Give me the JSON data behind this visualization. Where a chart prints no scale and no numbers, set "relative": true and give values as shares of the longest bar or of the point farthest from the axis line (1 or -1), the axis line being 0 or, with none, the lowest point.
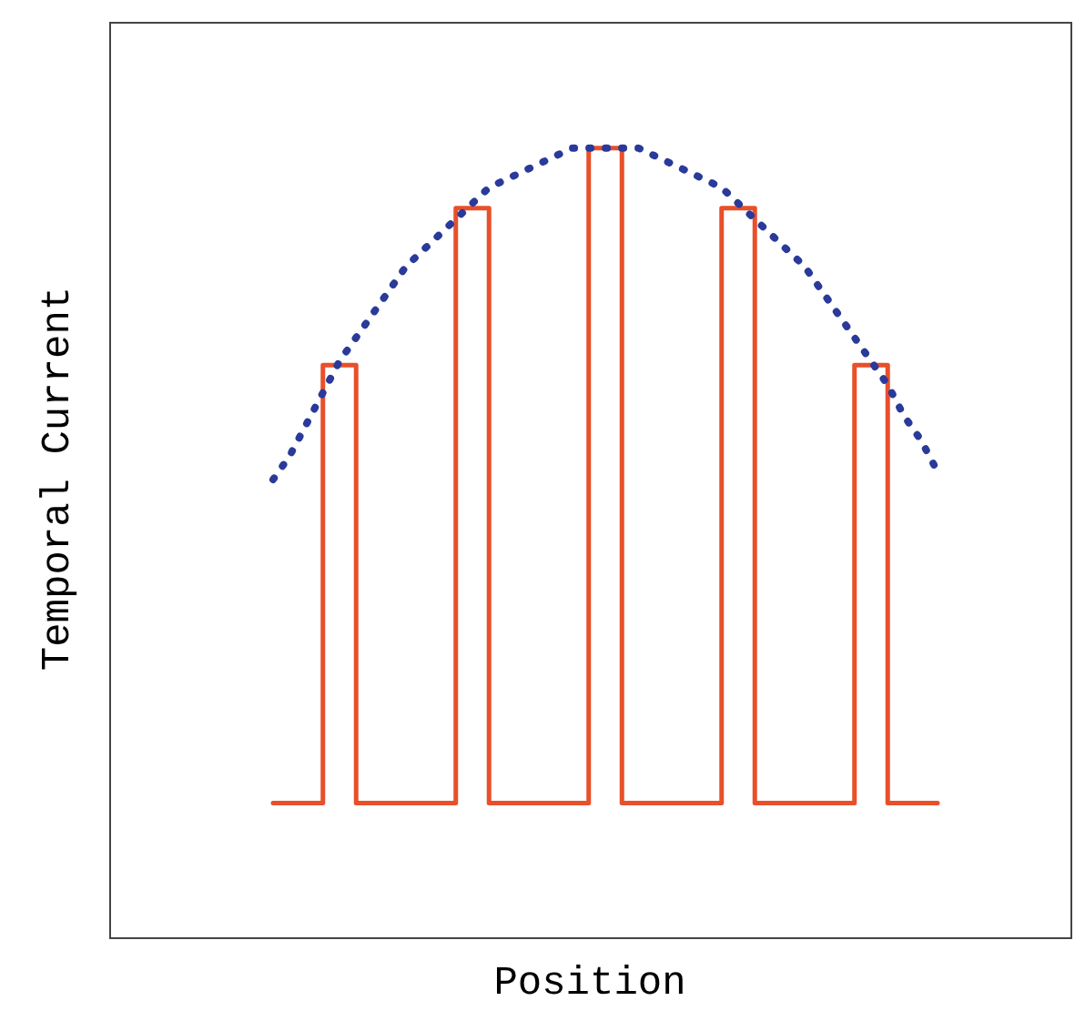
{
  "chart_data": {
    "type": "line",
    "relative": true,
    "xlabel": "Position",
    "ylabel": "Temporal Current",
    "marker": "none",
    "tick_labels": false,
    "categories": [
      null,
      null,
      null,
      null,
      null,
      null,
      null,
      null,
      null,
      null,
      null,
      null,
      null,
      null,
      null,
      null,
      null,
      null,
      null,
      null,
      null,
      null,
      null,
      null,
      null,
      null,
      null,
      null,
      null,
      null,
      null,
      null,
      null,
      null,
      null,
      null,
      null,
      null,
      null,
      null,
      null
    ],
    "series": [
      {
        "type": "step",
        "color": "#e8502a",
        "line_style": "solid",
        "values": [
          0.17,
          0.17,
          0.17,
          0.725,
          0.725,
          0.17,
          0.17,
          0.17,
          0.17,
          0.17,
          0.17,
          0.924,
          0.924,
          0.17,
          0.17,
          0.17,
          0.17,
          0.17,
          0.17,
          1,
          1,
          0.17,
          0.17,
          0.17,
          0.17,
          0.17,
          0.17,
          0.924,
          0.924,
          0.17,
          0.17,
          0.17,
          0.17,
          0.17,
          0.17,
          0.725,
          0.725,
          0.17,
          0.17,
          0.17,
          0.17
        ]
      },
      {
        "color": "#2a3a9a",
        "line_style": "dotted",
        "values": [
          0.58,
          0.61,
          0.65,
          0.69,
          0.73,
          0.76,
          0.79,
          0.82,
          0.85,
          0.87,
          0.89,
          0.91,
          0.93,
          0.95,
          0.96,
          0.97,
          0.98,
          0.99,
          1,
          1,
          1,
          1,
          1,
          0.99,
          0.98,
          0.97,
          0.96,
          0.95,
          0.93,
          0.91,
          0.89,
          0.87,
          0.85,
          0.82,
          0.79,
          0.76,
          0.73,
          0.7,
          0.66,
          0.63,
          0.59
        ]
      }
    ]
  }
}
